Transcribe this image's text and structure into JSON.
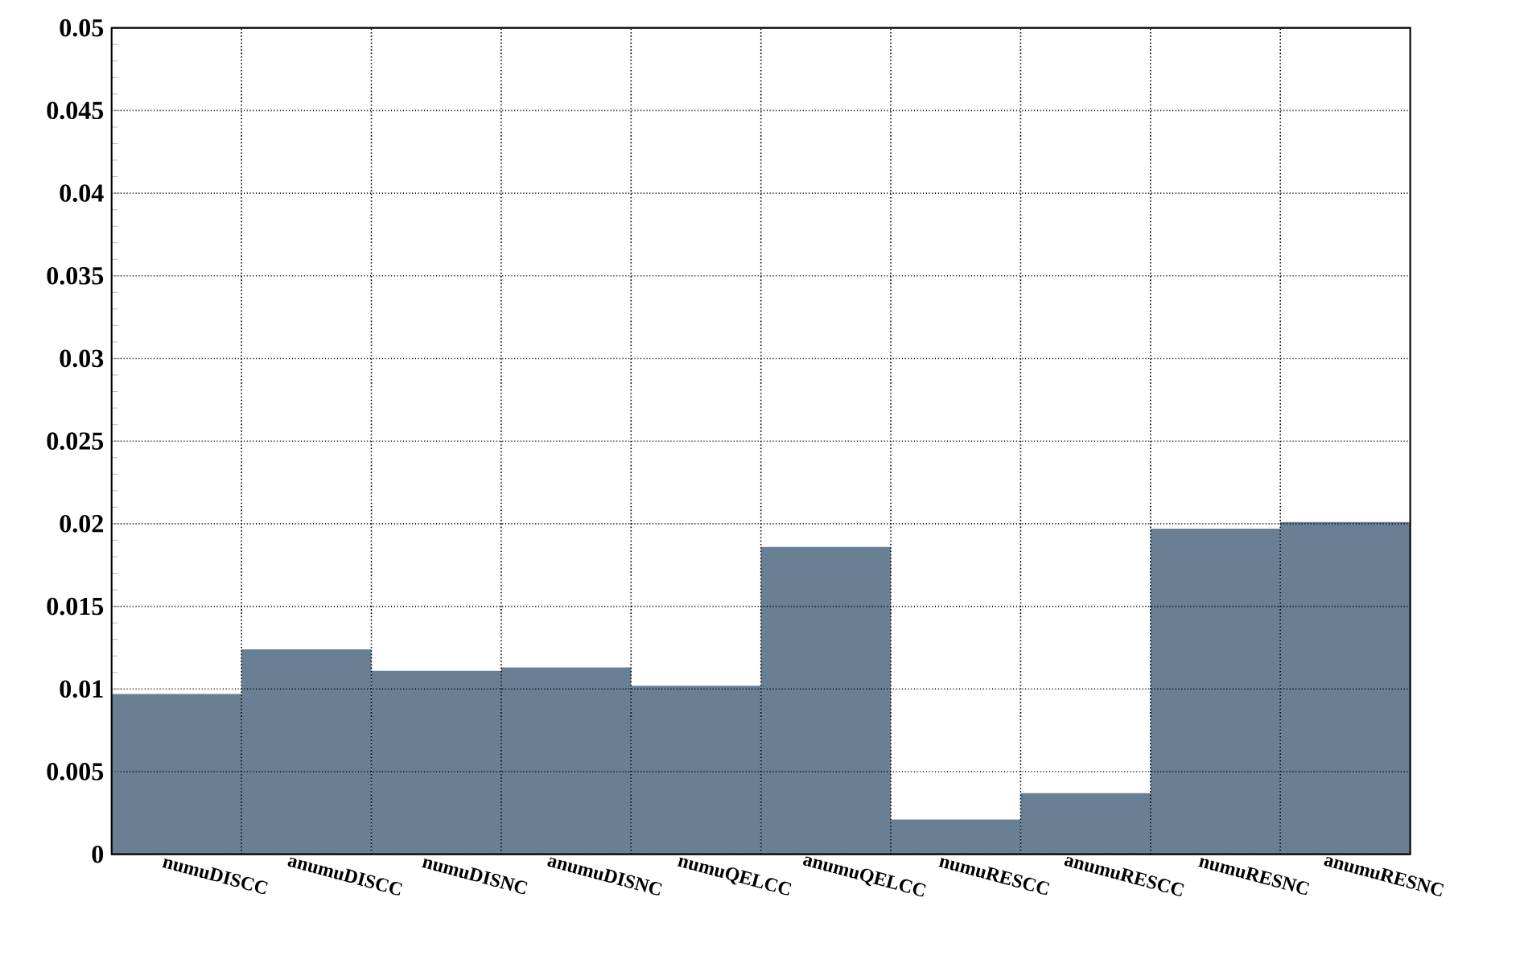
{
  "chart_data": {
    "type": "bar",
    "color": "#687f94",
    "categories": [
      "numuDISCC",
      "anumuDISCC",
      "numuDISNC",
      "anumuDISNC",
      "numuQELCC",
      "anumuQELCC",
      "numuRESCC",
      "anumuRESCC",
      "numuRESNC",
      "anumuRESNC"
    ],
    "values": [
      0.0097,
      0.0124,
      0.0111,
      0.0113,
      0.0102,
      0.0186,
      0.0021,
      0.0037,
      0.0197,
      0.0201
    ],
    "ylim": [
      0,
      0.05
    ],
    "yticks": [
      0,
      0.005,
      0.01,
      0.015,
      0.02,
      0.025,
      0.03,
      0.035,
      0.04,
      0.045,
      0.05
    ],
    "grid": true
  }
}
